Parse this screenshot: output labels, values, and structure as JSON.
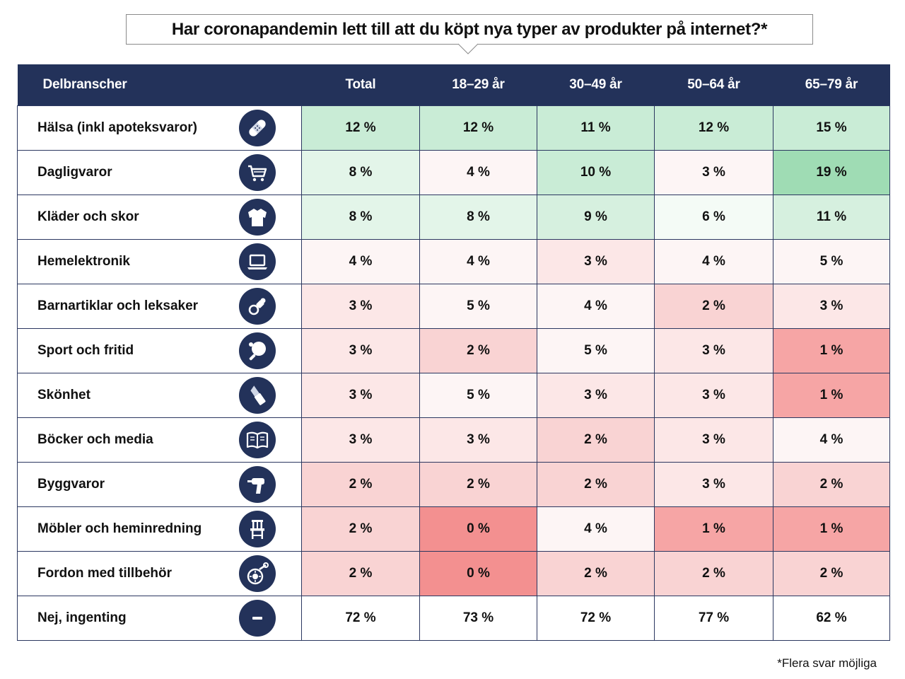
{
  "title": "Har coronapandemin lett till att du köpt nya typer av produkter på internet?*",
  "footnote": "*Flera svar möjliga",
  "colors": {
    "header_bg": "#23325a",
    "icon_bg": "#23325a",
    "green_scale": [
      "#f4fbf6",
      "#e3f5e9",
      "#c9ecd6",
      "#9fdcb4"
    ],
    "red_scale": [
      "#fdf5f5",
      "#fce7e7",
      "#f9d3d3",
      "#f6b3b3",
      "#f39090"
    ]
  },
  "chart_data": {
    "type": "table",
    "columns": [
      "Delbranscher",
      "Total",
      "18–29 år",
      "30–49 år",
      "50–64 år",
      "65–79 år"
    ],
    "rows": [
      {
        "category": "Hälsa (inkl apoteksvaror)",
        "icon": "bandage-icon",
        "values": [
          "12 %",
          "12 %",
          "11 %",
          "12 %",
          "15 %"
        ],
        "colors": [
          "#c9ecd6",
          "#c9ecd6",
          "#c9ecd6",
          "#c9ecd6",
          "#c9ecd6"
        ]
      },
      {
        "category": "Dagligvaror",
        "icon": "shopping-cart-icon",
        "values": [
          "8 %",
          "4 %",
          "10 %",
          "3 %",
          "19 %"
        ],
        "colors": [
          "#e3f5e9",
          "#fdf5f5",
          "#c9ecd6",
          "#fdf5f5",
          "#9fdcb4"
        ]
      },
      {
        "category": "Kläder och skor",
        "icon": "sweater-icon",
        "values": [
          "8 %",
          "8 %",
          "9 %",
          "6 %",
          "11 %"
        ],
        "colors": [
          "#e3f5e9",
          "#e3f5e9",
          "#d6f0df",
          "#f4fbf6",
          "#d6f0df"
        ]
      },
      {
        "category": "Hemelektronik",
        "icon": "laptop-icon",
        "values": [
          "4 %",
          "4 %",
          "3 %",
          "4 %",
          "5 %"
        ],
        "colors": [
          "#fdf5f5",
          "#fdf5f5",
          "#fce7e7",
          "#fdf5f5",
          "#fdf5f5"
        ]
      },
      {
        "category": "Barnartiklar och leksaker",
        "icon": "pacifier-icon",
        "values": [
          "3 %",
          "5 %",
          "4 %",
          "2 %",
          "3 %"
        ],
        "colors": [
          "#fce7e7",
          "#fdf5f5",
          "#fdf5f5",
          "#f9d3d3",
          "#fce7e7"
        ]
      },
      {
        "category": "Sport och fritid",
        "icon": "ping-pong-icon",
        "values": [
          "3 %",
          "2 %",
          "5 %",
          "3 %",
          "1 %"
        ],
        "colors": [
          "#fce7e7",
          "#f9d3d3",
          "#fdf5f5",
          "#fce7e7",
          "#f6a5a5"
        ]
      },
      {
        "category": "Skönhet",
        "icon": "lipstick-icon",
        "values": [
          "3 %",
          "5 %",
          "3 %",
          "3 %",
          "1 %"
        ],
        "colors": [
          "#fce7e7",
          "#fdf5f5",
          "#fce7e7",
          "#fce7e7",
          "#f6a5a5"
        ]
      },
      {
        "category": "Böcker och media",
        "icon": "book-icon",
        "values": [
          "3 %",
          "3 %",
          "2 %",
          "3 %",
          "4 %"
        ],
        "colors": [
          "#fce7e7",
          "#fce7e7",
          "#f9d3d3",
          "#fce7e7",
          "#fdf5f5"
        ]
      },
      {
        "category": "Byggvaror",
        "icon": "drill-icon",
        "values": [
          "2 %",
          "2 %",
          "2 %",
          "3 %",
          "2 %"
        ],
        "colors": [
          "#f9d3d3",
          "#f9d3d3",
          "#f9d3d3",
          "#fce7e7",
          "#f9d3d3"
        ]
      },
      {
        "category": "Möbler och heminredning",
        "icon": "chair-icon",
        "values": [
          "2 %",
          "0 %",
          "4 %",
          "1 %",
          "1 %"
        ],
        "colors": [
          "#f9d3d3",
          "#f39090",
          "#fdf5f5",
          "#f6a5a5",
          "#f6a5a5"
        ]
      },
      {
        "category": "Fordon med tillbehör",
        "icon": "wheel-wrench-icon",
        "values": [
          "2 %",
          "0 %",
          "2 %",
          "2 %",
          "2 %"
        ],
        "colors": [
          "#f9d3d3",
          "#f39090",
          "#f9d3d3",
          "#f9d3d3",
          "#f9d3d3"
        ]
      },
      {
        "category": "Nej, ingenting",
        "icon": "minus-icon",
        "values": [
          "72 %",
          "73 %",
          "72 %",
          "77 %",
          "62 %"
        ],
        "colors": [
          "#ffffff",
          "#ffffff",
          "#ffffff",
          "#ffffff",
          "#ffffff"
        ]
      }
    ]
  }
}
